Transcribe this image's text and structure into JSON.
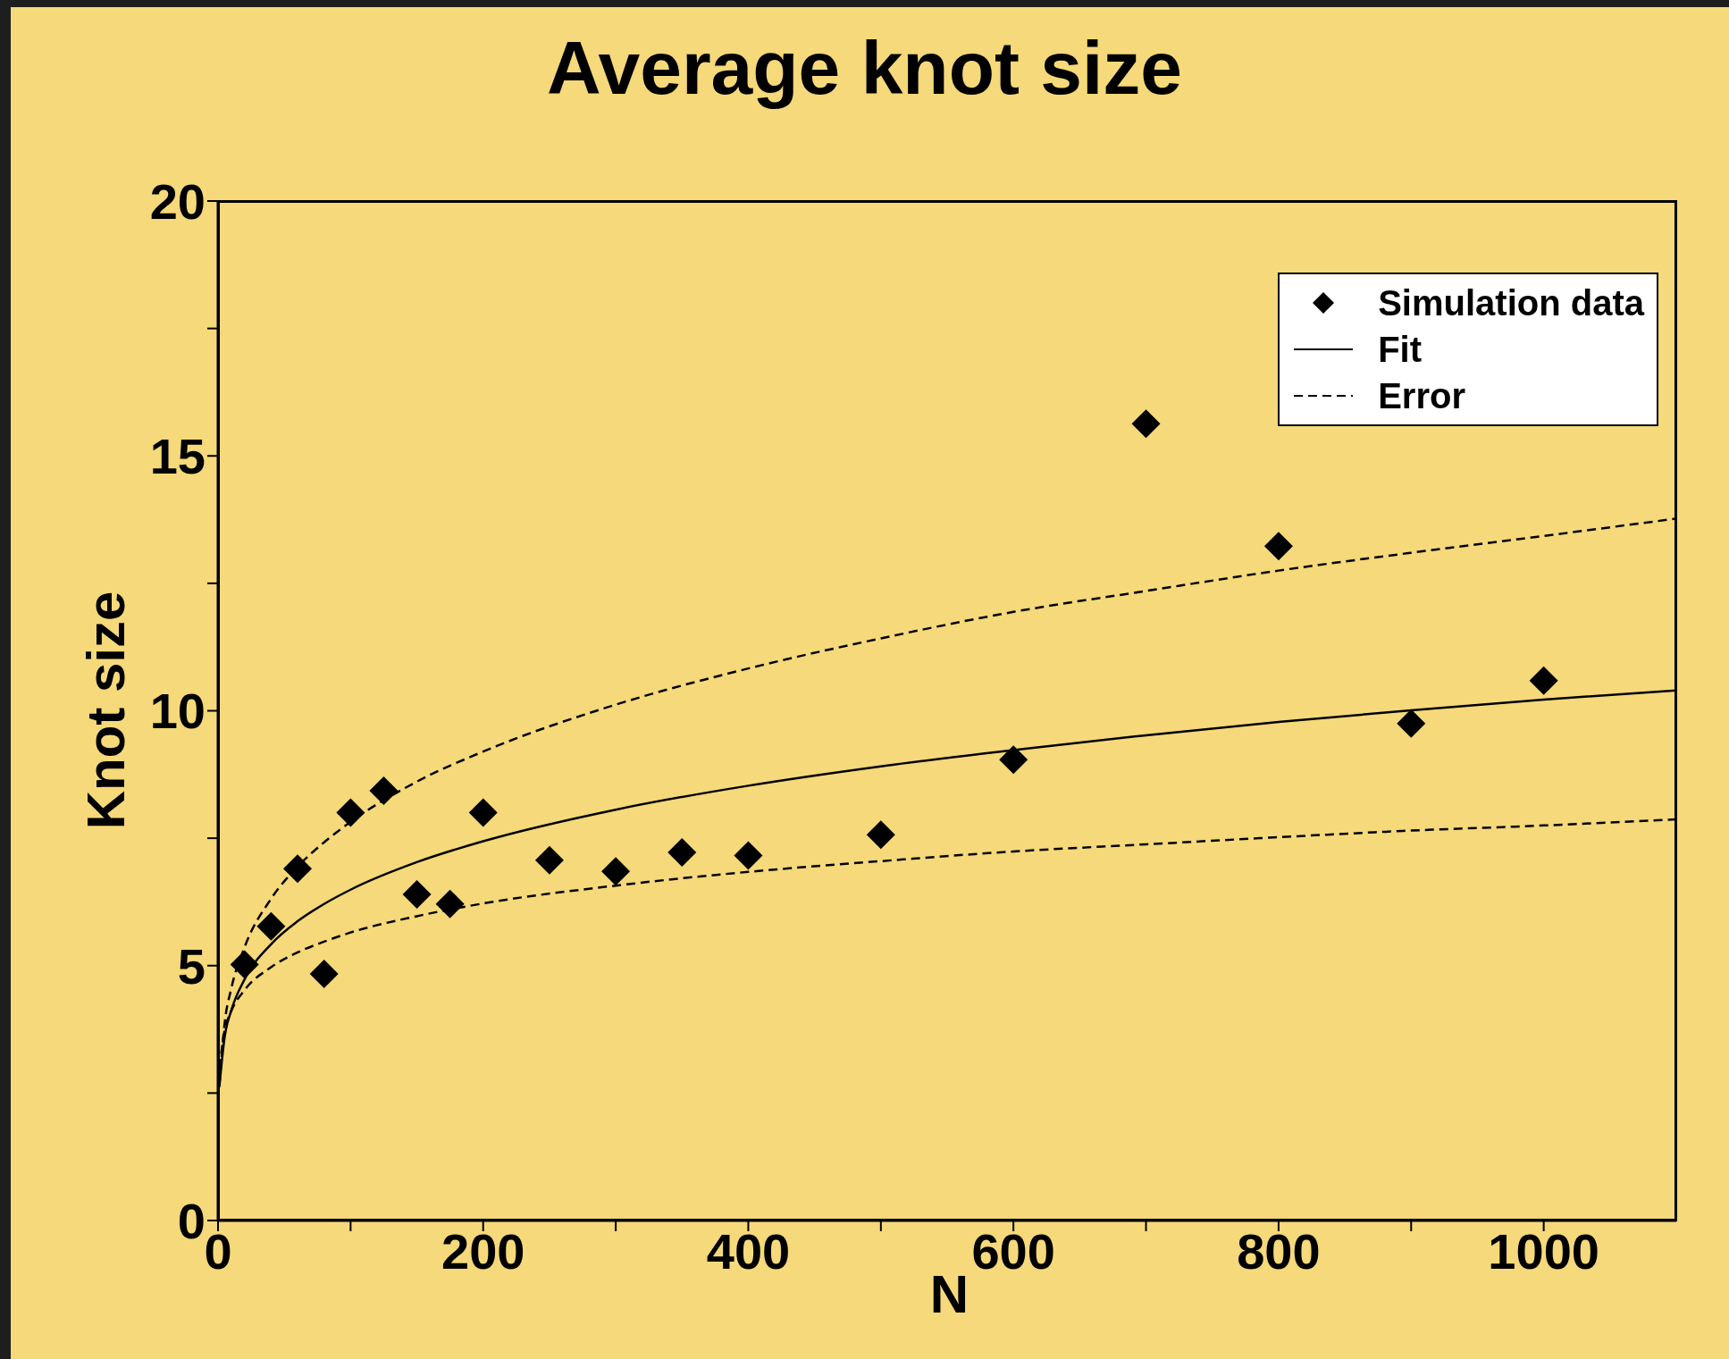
{
  "chart_data": {
    "type": "scatter",
    "title": "Average knot size",
    "xlabel": "N",
    "ylabel": "Knot size",
    "xlim": [
      0,
      1100
    ],
    "xticks": [
      0,
      {
        "value": 100,
        "label": null
      },
      200,
      {
        "value": 300,
        "label": null
      },
      400,
      {
        "value": 500,
        "label": null
      },
      600,
      {
        "value": 700,
        "label": null
      },
      800,
      {
        "value": 900,
        "label": null
      },
      1000
    ],
    "ylim": [
      0,
      20
    ],
    "yticks": [
      0,
      {
        "value": 2.5,
        "label": null
      },
      5,
      {
        "value": 7.5,
        "label": null
      },
      10,
      {
        "value": 12.5,
        "label": null
      },
      15,
      {
        "value": 17.5,
        "label": null
      },
      20
    ],
    "legend": "top right",
    "grid": false,
    "series": [
      {
        "name": "Simulation data",
        "marker": "diamond",
        "color": "#000000",
        "x": [
          20,
          40,
          60,
          80,
          100,
          125,
          150,
          175,
          200,
          250,
          300,
          350,
          400,
          500,
          600,
          700,
          800,
          900,
          1000
        ],
        "values": [
          5.02,
          5.77,
          6.9,
          4.84,
          8.0,
          8.43,
          6.4,
          6.21,
          8.0,
          7.07,
          6.85,
          7.22,
          7.16,
          7.57,
          9.04,
          15.63,
          13.23,
          9.75,
          10.59
        ]
      },
      {
        "name": "Fit",
        "type": "line",
        "line_style": "solid",
        "color": "#000000",
        "x": [
          1,
          5,
          10,
          20,
          40,
          60,
          80,
          100,
          150,
          200,
          300,
          400,
          500,
          600,
          700,
          800,
          900,
          1000,
          1100
        ],
        "values": [
          2.62,
          3.6,
          4.12,
          4.73,
          5.42,
          5.87,
          6.21,
          6.49,
          7.03,
          7.44,
          8.06,
          8.53,
          8.91,
          9.23,
          9.52,
          9.78,
          10.01,
          10.22,
          10.4
        ]
      },
      {
        "name": "Error",
        "type": "line",
        "line_style": "dashed",
        "color": "#000000",
        "x": [
          1,
          5,
          10,
          20,
          40,
          60,
          80,
          100,
          150,
          200,
          300,
          400,
          500,
          600,
          700,
          800,
          900,
          1000,
          1100
        ],
        "values": [
          2.65,
          3.87,
          4.55,
          5.36,
          6.31,
          6.94,
          7.42,
          7.82,
          8.61,
          9.2,
          10.12,
          10.83,
          11.42,
          11.94,
          12.35,
          12.75,
          13.1,
          13.43,
          13.77
        ]
      },
      {
        "type": "line",
        "line_style": "dashed",
        "color": "#000000",
        "x": [
          1,
          5,
          10,
          20,
          40,
          60,
          80,
          100,
          150,
          200,
          300,
          400,
          500,
          600,
          700,
          800,
          900,
          1000,
          1100
        ],
        "values": [
          2.99,
          3.73,
          4.11,
          4.52,
          4.97,
          5.26,
          5.47,
          5.65,
          5.97,
          6.22,
          6.57,
          6.84,
          7.05,
          7.24,
          7.38,
          7.52,
          7.65,
          7.75,
          7.87
        ]
      }
    ]
  }
}
